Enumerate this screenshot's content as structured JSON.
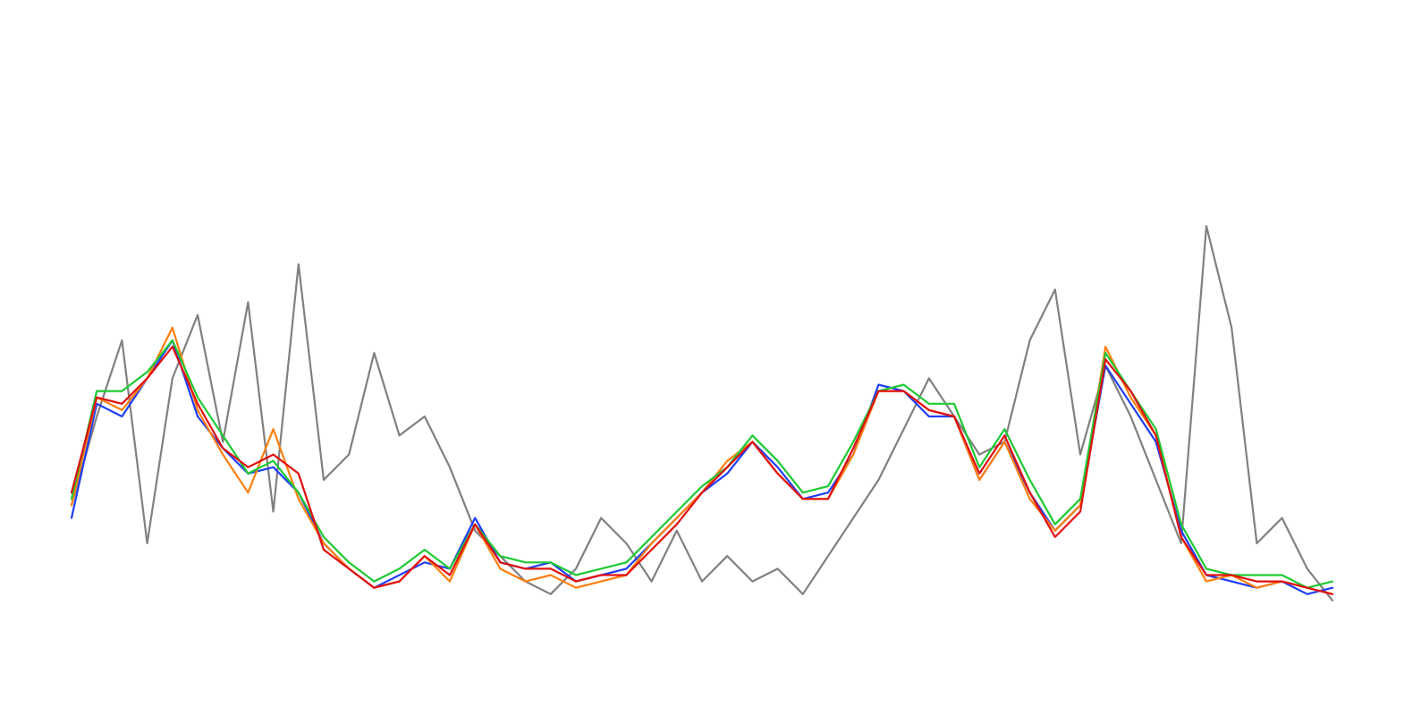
{
  "chart_data": {
    "type": "line",
    "title": "",
    "xlabel": "",
    "ylabel": "",
    "axes_visible": false,
    "grid": false,
    "legend": "none",
    "xlim": [
      0,
      100
    ],
    "ylim": [
      0,
      100
    ],
    "series": [
      {
        "color": "#808080",
        "x": [
          0,
          2,
          4,
          6,
          8,
          10,
          12,
          14,
          16,
          18,
          20,
          22,
          24,
          26,
          28,
          30,
          32,
          34,
          36,
          38,
          40,
          42,
          44,
          46,
          48,
          50,
          52,
          54,
          56,
          58,
          60,
          62,
          64,
          66,
          68,
          70,
          72,
          74,
          76,
          78,
          80,
          82,
          84,
          86,
          88,
          90,
          92,
          94,
          96,
          98,
          100
        ],
        "y": [
          26,
          40,
          52,
          20,
          46,
          56,
          36,
          58,
          25,
          64,
          30,
          34,
          50,
          37,
          40,
          32,
          22,
          18,
          14,
          12,
          16,
          24,
          20,
          14,
          22,
          14,
          18,
          14,
          16,
          12,
          18,
          24,
          30,
          38,
          46,
          40,
          34,
          36,
          52,
          60,
          34,
          48,
          40,
          30,
          20,
          70,
          54,
          20,
          24,
          16,
          11
        ]
      },
      {
        "color": "#1f3ef5",
        "x": [
          0,
          2,
          4,
          6,
          8,
          10,
          12,
          14,
          16,
          18,
          20,
          22,
          24,
          26,
          28,
          30,
          32,
          34,
          36,
          38,
          40,
          42,
          44,
          46,
          48,
          50,
          52,
          54,
          56,
          58,
          60,
          62,
          64,
          66,
          68,
          70,
          72,
          74,
          76,
          78,
          80,
          82,
          84,
          86,
          88,
          90,
          92,
          94,
          96,
          98,
          100
        ],
        "y": [
          24,
          42,
          40,
          46,
          52,
          40,
          35,
          31,
          32,
          28,
          20,
          16,
          13,
          15,
          17,
          16,
          24,
          17,
          16,
          17,
          14,
          15,
          16,
          20,
          24,
          28,
          31,
          36,
          32,
          27,
          28,
          34,
          45,
          44,
          40,
          40,
          30,
          36,
          28,
          22,
          26,
          48,
          42,
          36,
          22,
          15,
          14,
          13,
          14,
          12,
          13
        ]
      },
      {
        "color": "#ff7f0e",
        "x": [
          0,
          2,
          4,
          6,
          8,
          10,
          12,
          14,
          16,
          18,
          20,
          22,
          24,
          26,
          28,
          30,
          32,
          34,
          36,
          38,
          40,
          42,
          44,
          46,
          48,
          50,
          52,
          54,
          56,
          58,
          60,
          62,
          64,
          66,
          68,
          70,
          72,
          74,
          76,
          78,
          80,
          82,
          84,
          86,
          88,
          90,
          92,
          94,
          96,
          98,
          100
        ],
        "y": [
          26,
          43,
          41,
          46,
          54,
          41,
          34,
          28,
          38,
          27,
          20,
          16,
          13,
          14,
          18,
          14,
          23,
          16,
          14,
          15,
          13,
          14,
          15,
          20,
          24,
          28,
          33,
          36,
          31,
          27,
          27,
          34,
          44,
          44,
          41,
          40,
          30,
          36,
          27,
          22,
          26,
          51,
          43,
          37,
          21,
          14,
          15,
          13,
          14,
          13,
          12
        ]
      },
      {
        "color": "#1ec933",
        "x": [
          0,
          2,
          4,
          6,
          8,
          10,
          12,
          14,
          16,
          18,
          20,
          22,
          24,
          26,
          28,
          30,
          32,
          34,
          36,
          38,
          40,
          42,
          44,
          46,
          48,
          50,
          52,
          54,
          56,
          58,
          60,
          62,
          64,
          66,
          68,
          70,
          72,
          74,
          76,
          78,
          80,
          82,
          84,
          86,
          88,
          90,
          92,
          94,
          96,
          98,
          100
        ],
        "y": [
          27,
          44,
          44,
          47,
          52,
          43,
          37,
          31,
          33,
          28,
          21,
          17,
          14,
          16,
          19,
          16,
          23,
          18,
          17,
          17,
          15,
          16,
          17,
          21,
          25,
          29,
          32,
          37,
          33,
          28,
          29,
          36,
          44,
          45,
          42,
          42,
          32,
          38,
          30,
          23,
          27,
          50,
          44,
          38,
          23,
          16,
          15,
          15,
          15,
          13,
          14
        ]
      },
      {
        "color": "#e01010",
        "x": [
          0,
          2,
          4,
          6,
          8,
          10,
          12,
          14,
          16,
          18,
          20,
          22,
          24,
          26,
          28,
          30,
          32,
          34,
          36,
          38,
          40,
          42,
          44,
          46,
          48,
          50,
          52,
          54,
          56,
          58,
          60,
          62,
          64,
          66,
          68,
          70,
          72,
          74,
          76,
          78,
          80,
          82,
          84,
          86,
          88,
          90,
          92,
          94,
          96,
          98,
          100
        ],
        "y": [
          28,
          43,
          42,
          46,
          51,
          42,
          35,
          32,
          34,
          31,
          19,
          16,
          13,
          14,
          18,
          15,
          23,
          17,
          16,
          16,
          14,
          15,
          15,
          19,
          23,
          28,
          32,
          36,
          31,
          27,
          27,
          35,
          44,
          44,
          41,
          40,
          31,
          37,
          28,
          21,
          25,
          49,
          44,
          37,
          21,
          15,
          15,
          14,
          14,
          13,
          12
        ]
      }
    ]
  }
}
